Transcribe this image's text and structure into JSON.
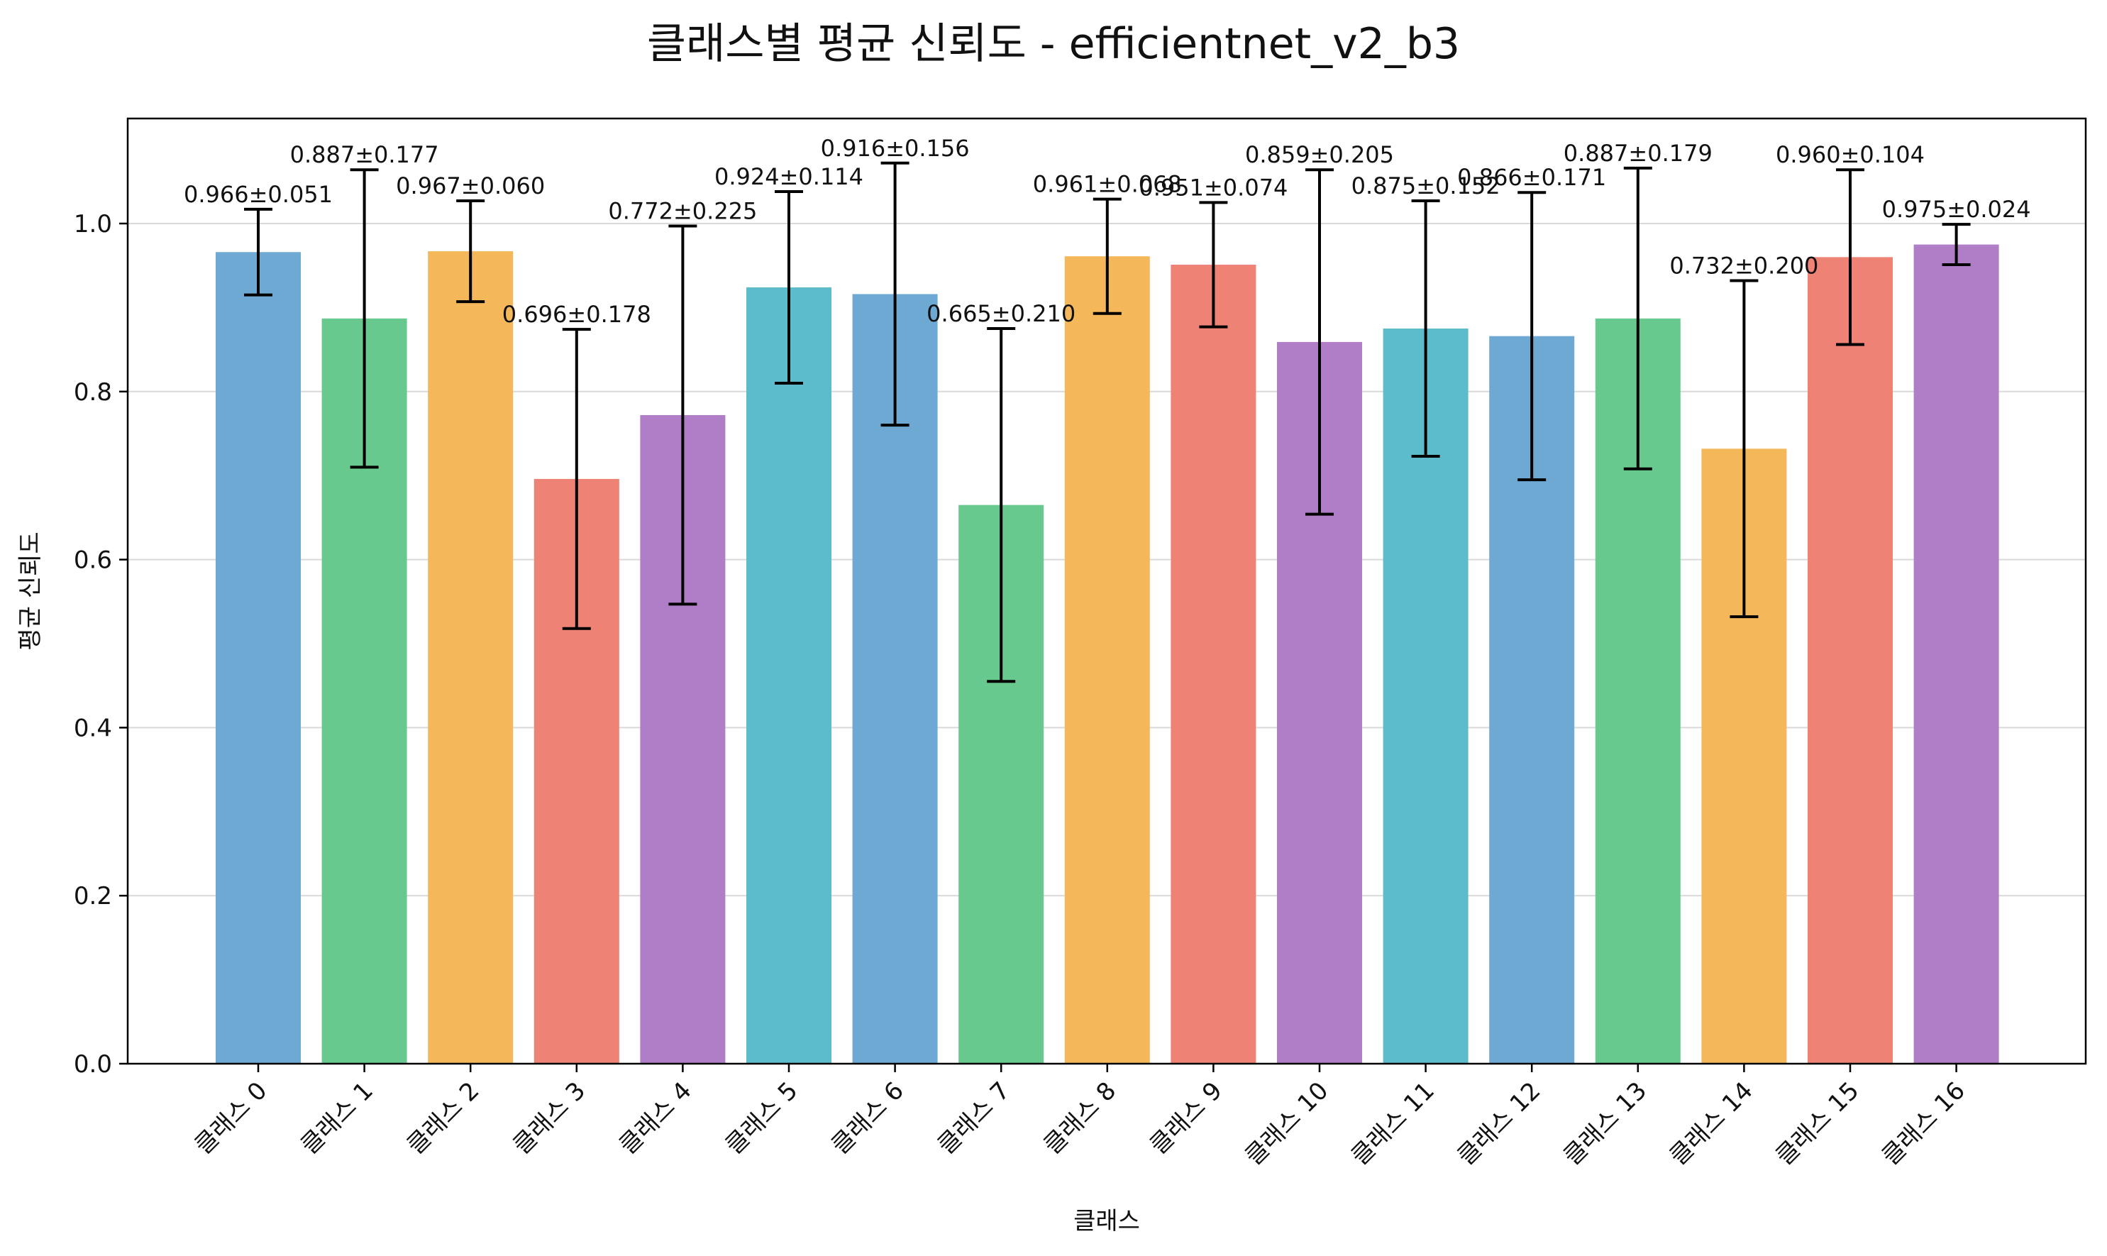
{
  "chart_data": {
    "type": "bar",
    "title": "클래스별 평균 신뢰도 - efficientnet_v2_b3",
    "xlabel": "클래스",
    "ylabel": "평균 신뢰도",
    "ylim": [
      0,
      1.125
    ],
    "yticks": [
      "0.0",
      "0.2",
      "0.4",
      "0.6",
      "0.8",
      "1.0"
    ],
    "grid": "horizontal",
    "categories": [
      "클래스 0",
      "클래스 1",
      "클래스 2",
      "클래스 3",
      "클래스 4",
      "클래스 5",
      "클래스 6",
      "클래스 7",
      "클래스 8",
      "클래스 9",
      "클래스 10",
      "클래스 11",
      "클래스 12",
      "클래스 13",
      "클래스 14",
      "클래스 15",
      "클래스 16"
    ],
    "values": [
      0.966,
      0.887,
      0.967,
      0.696,
      0.772,
      0.924,
      0.916,
      0.665,
      0.961,
      0.951,
      0.859,
      0.875,
      0.866,
      0.887,
      0.732,
      0.96,
      0.975
    ],
    "errors": [
      0.051,
      0.177,
      0.06,
      0.178,
      0.225,
      0.114,
      0.156,
      0.21,
      0.068,
      0.074,
      0.205,
      0.152,
      0.171,
      0.179,
      0.2,
      0.104,
      0.024
    ],
    "labels": [
      "0.966±0.051",
      "0.887±0.177",
      "0.967±0.060",
      "0.696±0.178",
      "0.772±0.225",
      "0.924±0.114",
      "0.916±0.156",
      "0.665±0.210",
      "0.961±0.068",
      "0.951±0.074",
      "0.859±0.205",
      "0.875±0.152",
      "0.866±0.171",
      "0.887±0.179",
      "0.732±0.200",
      "0.960±0.104",
      "0.975±0.024"
    ],
    "colors": [
      "#6ea9d4",
      "#68c98f",
      "#f4b85b",
      "#ee8275",
      "#b07ec6",
      "#5dbccc",
      "#6ea9d4",
      "#68c98f",
      "#f4b85b",
      "#ee8275",
      "#b07ec6",
      "#5dbccc",
      "#6ea9d4",
      "#68c98f",
      "#f4b85b",
      "#ee8275",
      "#b07ec6"
    ]
  }
}
